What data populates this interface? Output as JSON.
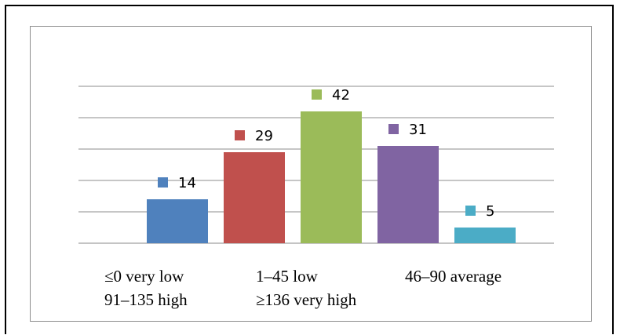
{
  "chart_data": {
    "type": "bar",
    "categories": [
      "≤0 very low",
      "1–45 low",
      "46–90 average",
      "91–135 high",
      "≥136 very high"
    ],
    "values": [
      14,
      29,
      42,
      31,
      5
    ],
    "colors": [
      "#4f81bd",
      "#c0504d",
      "#9bbb59",
      "#8064a2",
      "#4bacc6"
    ],
    "ylim": [
      0,
      50
    ],
    "grid": true,
    "data_labels": [
      "14",
      "29",
      "42",
      "31",
      "5"
    ]
  },
  "legend": {
    "items": [
      "≤0 very low",
      "1–45 low",
      "46–90 average",
      "91–135 high",
      "≥136 very high"
    ]
  }
}
